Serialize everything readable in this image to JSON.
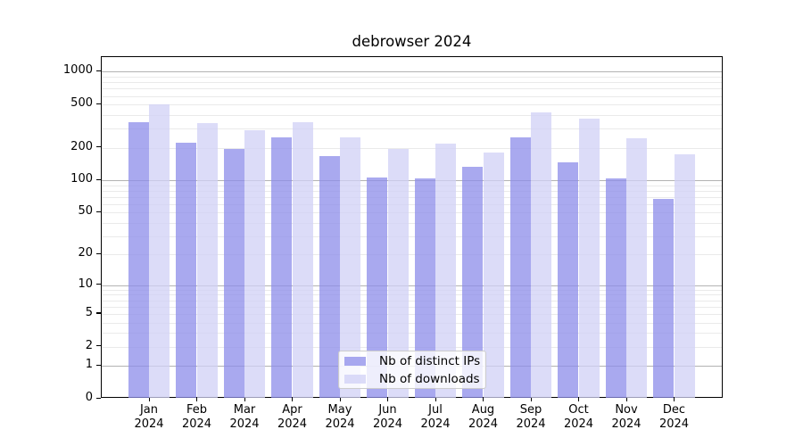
{
  "chart_data": {
    "type": "bar",
    "title": "debrowser 2024",
    "categories": [
      "Jan 2024",
      "Feb 2024",
      "Mar 2024",
      "Apr 2024",
      "May 2024",
      "Jun 2024",
      "Jul 2024",
      "Aug 2024",
      "Sep 2024",
      "Oct 2024",
      "Nov 2024",
      "Dec 2024"
    ],
    "series": [
      {
        "name": "Nb of distinct IPs",
        "color": "#a9a9ef",
        "values": [
          340,
          220,
          190,
          245,
          165,
          104,
          102,
          130,
          245,
          145,
          103,
          66
        ]
      },
      {
        "name": "Nb of downloads",
        "color": "#dcdcf8",
        "values": [
          490,
          330,
          285,
          340,
          245,
          190,
          215,
          176,
          415,
          365,
          240,
          170
        ]
      }
    ],
    "yscale": "log1p",
    "ylim": [
      0,
      1365
    ],
    "yticks": [
      0,
      1,
      2,
      5,
      10,
      20,
      50,
      100,
      200,
      500,
      1000
    ],
    "grid": {
      "major_at": [
        1,
        10,
        100,
        1000
      ],
      "minor_decades": [
        1,
        10,
        100
      ],
      "major_color": "#b3b3b3",
      "minor_color": "#eaeaea"
    },
    "legend_position": "inside lower center",
    "axis_color": "#000000",
    "background": "#ffffff"
  }
}
